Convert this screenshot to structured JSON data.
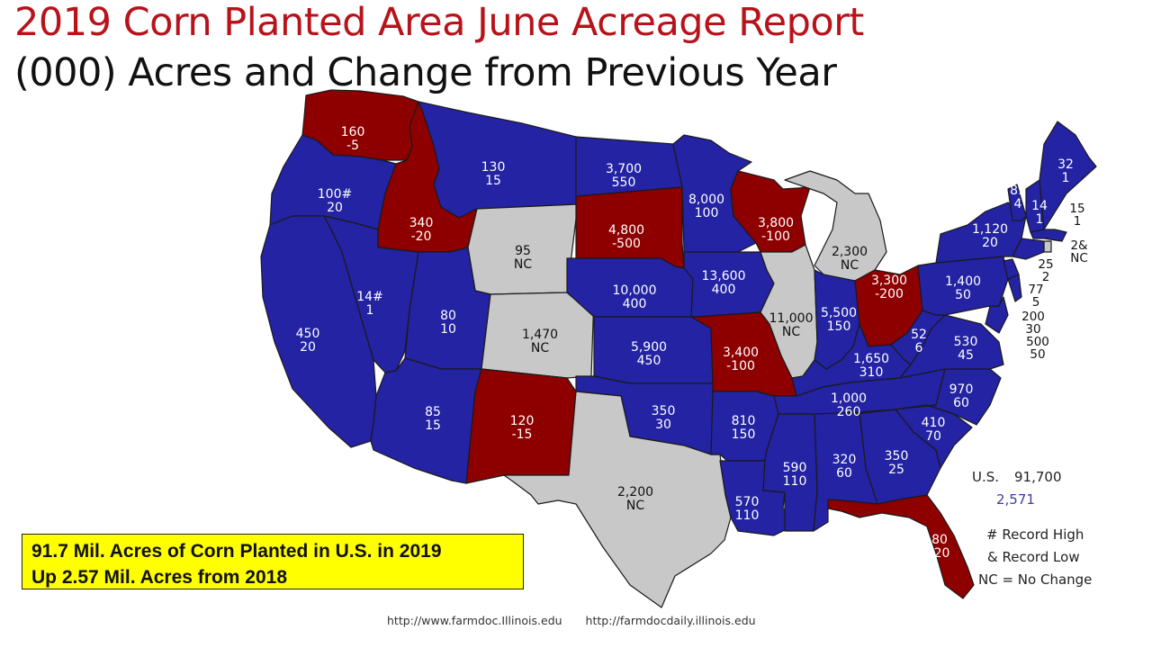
{
  "title": "2019 Corn Planted Area June Acreage Report",
  "subtitle": "(000) Acres and Change from Previous Year",
  "colors": {
    "increase": "#2323a3",
    "decrease": "#8e0000",
    "no_change": "#c8c8c8",
    "title": "#b8121b"
  },
  "states": [
    {
      "acres": "160",
      "change": "-5",
      "trend": "decrease"
    },
    {
      "acres": "100#",
      "change": "20",
      "trend": "increase"
    },
    {
      "acres": "450",
      "change": "20",
      "trend": "increase"
    },
    {
      "acres": "340",
      "change": "-20",
      "trend": "decrease"
    },
    {
      "acres": "14#",
      "change": "1",
      "trend": "increase"
    },
    {
      "acres": "130",
      "change": "15",
      "trend": "increase"
    },
    {
      "acres": "95",
      "change": "NC",
      "trend": "no_change"
    },
    {
      "acres": "80",
      "change": "10",
      "trend": "increase"
    },
    {
      "acres": "85",
      "change": "15",
      "trend": "increase"
    },
    {
      "acres": "1,470",
      "change": "NC",
      "trend": "no_change"
    },
    {
      "acres": "120",
      "change": "-15",
      "trend": "decrease"
    },
    {
      "acres": "3,700",
      "change": "550",
      "trend": "increase"
    },
    {
      "acres": "4,800",
      "change": "-500",
      "trend": "decrease"
    },
    {
      "acres": "10,000",
      "change": "400",
      "trend": "increase"
    },
    {
      "acres": "5,900",
      "change": "450",
      "trend": "increase"
    },
    {
      "acres": "350",
      "change": "30",
      "trend": "increase"
    },
    {
      "acres": "2,200",
      "change": "NC",
      "trend": "no_change"
    },
    {
      "acres": "8,000",
      "change": "100",
      "trend": "increase"
    },
    {
      "acres": "13,600",
      "change": "400",
      "trend": "increase"
    },
    {
      "acres": "3,400",
      "change": "-100",
      "trend": "decrease"
    },
    {
      "acres": "810",
      "change": "150",
      "trend": "increase"
    },
    {
      "acres": "570",
      "change": "110",
      "trend": "increase"
    },
    {
      "acres": "3,800",
      "change": "-100",
      "trend": "decrease"
    },
    {
      "acres": "11,000",
      "change": "NC",
      "trend": "no_change"
    },
    {
      "acres": "2,300",
      "change": "NC",
      "trend": "no_change"
    },
    {
      "acres": "5,500",
      "change": "150",
      "trend": "increase"
    },
    {
      "acres": "3,300",
      "change": "-200",
      "trend": "decrease"
    },
    {
      "acres": "1,650",
      "change": "310",
      "trend": "increase"
    },
    {
      "acres": "1,000",
      "change": "260",
      "trend": "increase"
    },
    {
      "acres": "590",
      "change": "110",
      "trend": "increase"
    },
    {
      "acres": "320",
      "change": "60",
      "trend": "increase"
    },
    {
      "acres": "350",
      "change": "25",
      "trend": "increase"
    },
    {
      "acres": "80",
      "change": "-20",
      "trend": "decrease"
    },
    {
      "acres": "410",
      "change": "70",
      "trend": "increase"
    },
    {
      "acres": "970",
      "change": "60",
      "trend": "increase"
    },
    {
      "acres": "530",
      "change": "45",
      "trend": "increase"
    },
    {
      "acres": "52",
      "change": "6",
      "trend": "increase"
    },
    {
      "acres": "1,400",
      "change": "50",
      "trend": "increase"
    },
    {
      "acres": "1,120",
      "change": "20",
      "trend": "increase"
    },
    {
      "acres": "89",
      "change": "4",
      "trend": "increase"
    },
    {
      "acres": "14",
      "change": "1",
      "trend": "increase"
    },
    {
      "acres": "32",
      "change": "1",
      "trend": "increase"
    },
    {
      "acres": "15",
      "change": "1",
      "trend": "increase"
    },
    {
      "acres": "2&",
      "change": "NC",
      "trend": "no_change"
    },
    {
      "acres": "25",
      "change": "2",
      "trend": "increase"
    },
    {
      "acres": "77",
      "change": "5",
      "trend": "increase"
    },
    {
      "acres": "200",
      "change": "30",
      "trend": "increase"
    },
    {
      "acres": "500",
      "change": "50",
      "trend": "increase"
    }
  ],
  "us_total": {
    "label": "U.S.",
    "acres": "91,700",
    "change": "2,571"
  },
  "legend": [
    "# Record High",
    "& Record Low",
    "NC = No Change"
  ],
  "callout": {
    "line1": "91.7 Mil. Acres of Corn Planted in U.S. in 2019",
    "line2": "Up 2.57 Mil. Acres from 2018"
  },
  "urls": [
    "http://www.farmdoc.Illinois.edu",
    "http://farmdocdaily.illinois.edu"
  ]
}
